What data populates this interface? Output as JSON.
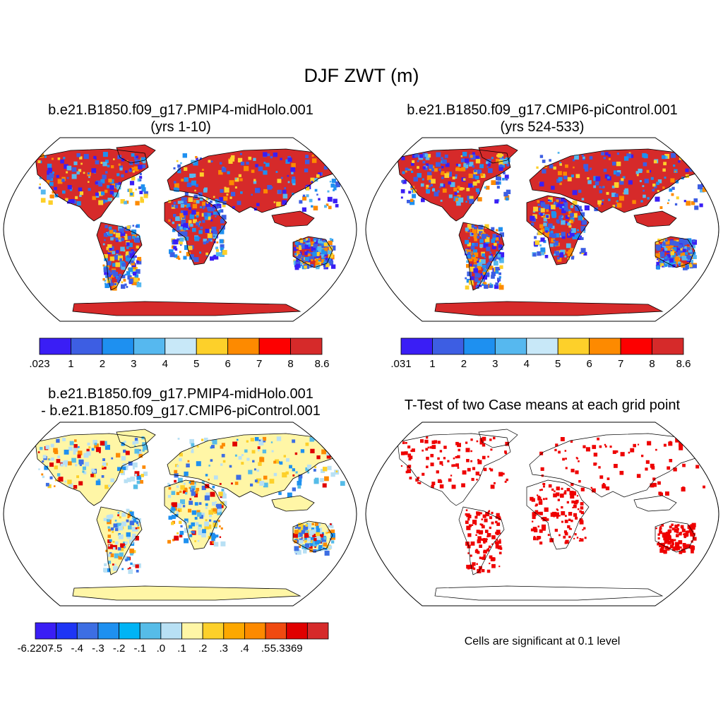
{
  "title": "DJF ZWT (m)",
  "colors": {
    "cb1": [
      "#3a1ef5",
      "#3d5ee3",
      "#1e90f0",
      "#56b8ef",
      "#c8e8f8",
      "#fdd02a",
      "#fd8a00",
      "#fd0000",
      "#d62a2a"
    ],
    "cb2": [
      "#3a1ef5",
      "#3d5ee3",
      "#1e90f0",
      "#56b8ef",
      "#c8e8f8",
      "#fdd02a",
      "#fd8a00",
      "#fd0000",
      "#d62a2a"
    ],
    "cb3": [
      "#3a1ef5",
      "#1e35f5",
      "#3d6ee3",
      "#1e90f0",
      "#00b4f5",
      "#56bce8",
      "#b8e0f4",
      "#fff6a6",
      "#fdd02a",
      "#fda800",
      "#fd8a00",
      "#f04a10",
      "#e00000",
      "#d62a2a"
    ],
    "sig": "#ee0000"
  },
  "panels": [
    {
      "id": "p1",
      "title_line1": "b.e21.B1850.f09_g17.PMIP4-midHolo.001",
      "title_line2": "(yrs 1-10)",
      "colorbar_labels": [
        ".023",
        "1",
        "2",
        "3",
        "4",
        "5",
        "6",
        "7",
        "8",
        "8.6"
      ]
    },
    {
      "id": "p2",
      "title_line1": "b.e21.B1850.f09_g17.CMIP6-piControl.001",
      "title_line2": "(yrs 524-533)",
      "colorbar_labels": [
        ".031",
        "1",
        "2",
        "3",
        "4",
        "5",
        "6",
        "7",
        "8",
        "8.6"
      ]
    },
    {
      "id": "p3",
      "title_line1": "b.e21.B1850.f09_g17.PMIP4-midHolo.001",
      "title_line2": "- b.e21.B1850.f09_g17.CMIP6-piControl.001",
      "colorbar_labels": [
        "-6.2207",
        "-.5",
        "-.4",
        "-.3",
        "-.2",
        "-.1",
        ".0",
        ".1",
        ".2",
        ".3",
        ".4",
        ".5",
        "5.3369"
      ]
    },
    {
      "id": "p4",
      "title_line1": "T-Test of two Case means at each grid point",
      "note": "Cells are significant at 0.1 level"
    }
  ]
}
